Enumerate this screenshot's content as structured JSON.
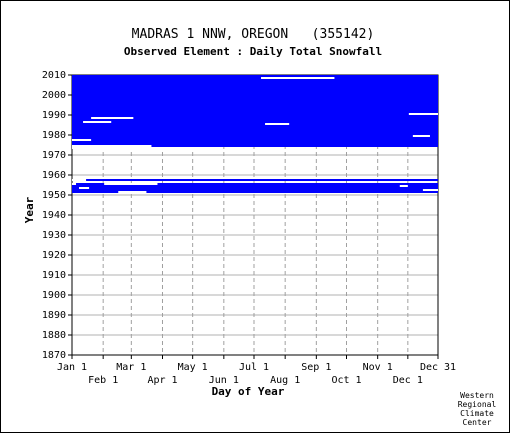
{
  "chart_data": {
    "type": "heatmap",
    "title": "MADRAS 1 NNW, OREGON   (355142)",
    "subtitle": "Observed Element : Daily Total Snowfall",
    "xlabel": "Day of Year",
    "ylabel": "Year",
    "x_ticks_upper": [
      "Jan 1",
      "Mar 1",
      "May 1",
      "Jul 1",
      "Sep 1",
      "Nov 1",
      "Dec 31"
    ],
    "x_ticks_lower": [
      "Feb 1",
      "Apr 1",
      "Jun 1",
      "Aug 1",
      "Oct 1",
      "Dec 1"
    ],
    "x_tick_days": [
      1,
      32,
      60,
      91,
      121,
      152,
      182,
      213,
      244,
      274,
      305,
      335,
      365
    ],
    "y_ticks": [
      1870,
      1880,
      1890,
      1900,
      1910,
      1920,
      1930,
      1940,
      1950,
      1960,
      1970,
      1980,
      1990,
      2000,
      2010
    ],
    "xlim": [
      1,
      365
    ],
    "ylim": [
      1870,
      2010
    ],
    "data_color": "#0000ff",
    "grid": true,
    "coverage_blocks": [
      {
        "year_start": 1974,
        "year_end": 2010,
        "day_start": 1,
        "day_end": 365
      },
      {
        "year_start": 1957,
        "year_end": 1958,
        "day_start": 1,
        "day_end": 365
      },
      {
        "year_start": 1951,
        "year_end": 1956,
        "day_start": 1,
        "day_end": 365
      }
    ],
    "gaps": [
      {
        "year_start": 1974,
        "year_end": 1975,
        "day_start": 1,
        "day_end": 80
      },
      {
        "year_start": 1977,
        "year_end": 1978,
        "day_start": 1,
        "day_end": 20
      },
      {
        "year_start": 1986,
        "year_end": 1987,
        "day_start": 12,
        "day_end": 40
      },
      {
        "year_start": 1988,
        "year_end": 1989,
        "day_start": 20,
        "day_end": 62
      },
      {
        "year_start": 1985,
        "year_end": 1986,
        "day_start": 193,
        "day_end": 217
      },
      {
        "year_start": 1979,
        "year_end": 1980,
        "day_start": 340,
        "day_end": 357
      },
      {
        "year_start": 1990,
        "year_end": 1991,
        "day_start": 336,
        "day_end": 365
      },
      {
        "year_start": 2008,
        "year_end": 2009,
        "day_start": 189,
        "day_end": 262
      },
      {
        "year_start": 1957,
        "year_end": 1958,
        "day_start": 1,
        "day_end": 15
      },
      {
        "year_start": 1955,
        "year_end": 1956,
        "day_start": 1,
        "day_end": 5
      },
      {
        "year_start": 1955,
        "year_end": 1956,
        "day_start": 33,
        "day_end": 86
      },
      {
        "year_start": 1951,
        "year_end": 1952,
        "day_start": 47,
        "day_end": 75
      },
      {
        "year_start": 1953,
        "year_end": 1954,
        "day_start": 8,
        "day_end": 18
      },
      {
        "year_start": 1954,
        "year_end": 1955,
        "day_start": 327,
        "day_end": 335
      },
      {
        "year_start": 1952,
        "year_end": 1953,
        "day_start": 350,
        "day_end": 365
      }
    ],
    "after_gap": {
      "year_start": 1973,
      "year_end": 1974,
      "day_start": 1,
      "day_end": 128
    }
  },
  "credit": [
    "Western",
    "Regional",
    "Climate",
    "Center"
  ]
}
